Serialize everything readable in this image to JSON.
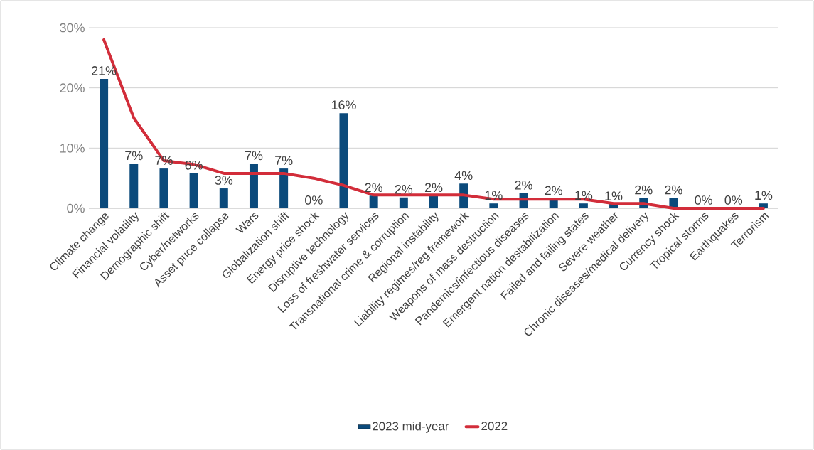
{
  "chart_data": {
    "type": "bar",
    "categories": [
      "Climate change",
      "Financial volatility",
      "Demographic shift",
      "Cyber/networks",
      "Asset price collapse",
      "Wars",
      "Globalization shift",
      "Energy price shock",
      "Disruptive technology",
      "Loss of freshwater services",
      "Transnational crime & corruption",
      "Regional instability",
      "Liability regimes/reg framework",
      "Weapons of mass destruction",
      "Pandemics/infectious diseases",
      "Emergent nation destabilization",
      "Failed and failing states",
      "Severe weather",
      "Chronic diseases/medical delivery",
      "Currency shock",
      "Tropical storms",
      "Earthquakes",
      "Terrorism"
    ],
    "series": [
      {
        "name": "2023 mid-year",
        "color": "#0b4a7b",
        "values": [
          21.5,
          7.4,
          6.6,
          5.8,
          3.3,
          7.4,
          6.6,
          0,
          15.8,
          2.1,
          1.8,
          2.1,
          4.1,
          0.8,
          2.5,
          1.6,
          0.8,
          0.7,
          1.7,
          1.7,
          0,
          0,
          0.8
        ],
        "value_labels": [
          "21%",
          "7%",
          "7%",
          "6%",
          "3%",
          "7%",
          "7%",
          "0%",
          "16%",
          "2%",
          "2%",
          "2%",
          "4%",
          "1%",
          "2%",
          "2%",
          "1%",
          "1%",
          "2%",
          "2%",
          "0%",
          "0%",
          "1%"
        ]
      },
      {
        "name": "2022",
        "type": "line",
        "color": "#d22d3a",
        "values": [
          28.0,
          15.0,
          7.9,
          7.3,
          5.8,
          5.8,
          5.8,
          5.0,
          3.8,
          2.2,
          2.2,
          2.2,
          2.2,
          1.5,
          1.5,
          1.5,
          1.5,
          0.8,
          0.8,
          0,
          0,
          0,
          0
        ]
      }
    ],
    "ylim": [
      0,
      30
    ],
    "yticks": [
      {
        "value": 0,
        "label": "0%"
      },
      {
        "value": 10,
        "label": "10%"
      },
      {
        "value": 20,
        "label": "20%"
      },
      {
        "value": 30,
        "label": "30%"
      }
    ],
    "grid": "y",
    "legend": "bottom"
  }
}
